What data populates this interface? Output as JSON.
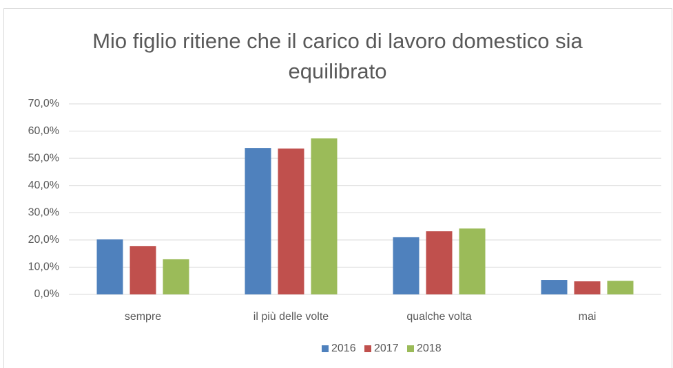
{
  "chart_data": {
    "type": "bar",
    "title": "Mio figlio ritiene che il carico di lavoro domestico sia equilibrato",
    "categories": [
      "sempre",
      "il più delle volte",
      "qualche volta",
      "mai"
    ],
    "series": [
      {
        "name": "2016",
        "color": "#4f81bd",
        "values": [
          20.2,
          53.8,
          21.0,
          5.3
        ]
      },
      {
        "name": "2017",
        "color": "#c0504d",
        "values": [
          17.7,
          53.6,
          23.2,
          4.8
        ]
      },
      {
        "name": "2018",
        "color": "#9bbb59",
        "values": [
          12.9,
          57.3,
          24.2,
          5.0
        ]
      }
    ],
    "ylim": [
      0,
      70
    ],
    "yticks": [
      {
        "value": 0,
        "label": "0,0%"
      },
      {
        "value": 10,
        "label": "10,0%"
      },
      {
        "value": 20,
        "label": "20,0%"
      },
      {
        "value": 30,
        "label": "30,0%"
      },
      {
        "value": 40,
        "label": "40,0%"
      },
      {
        "value": 50,
        "label": "50,0%"
      },
      {
        "value": 60,
        "label": "60,0%"
      },
      {
        "value": 70,
        "label": "70,0%"
      }
    ],
    "grid": true,
    "legend": "bottom"
  }
}
